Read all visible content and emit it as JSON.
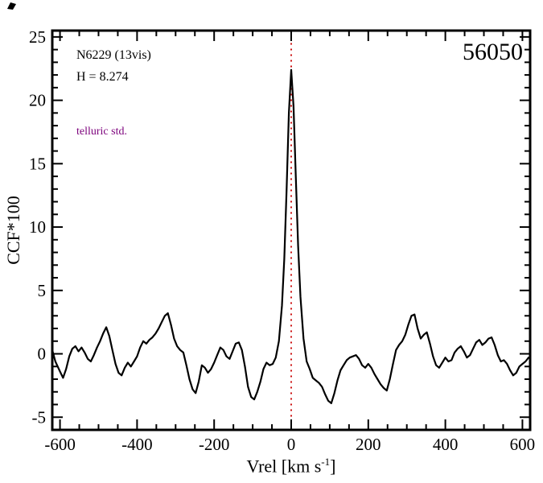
{
  "chart_data": {
    "type": "line",
    "title": "",
    "xlabel_pre": "Vrel [km s",
    "xlabel_sup": "-1",
    "xlabel_post": "]",
    "ylabel": "CCF*100",
    "xlim": [
      -620,
      620
    ],
    "ylim": [
      -6,
      25.5
    ],
    "xticks": [
      -600,
      -400,
      -200,
      0,
      200,
      400,
      600
    ],
    "yticks": [
      -5,
      0,
      5,
      10,
      15,
      20,
      25
    ],
    "x_minor_step": 50,
    "y_minor_step": 1,
    "grid": false,
    "legend": false,
    "frame_color": "#000000",
    "marker_line": {
      "x": 0,
      "color": "#cc1111",
      "style": "dotted"
    },
    "series": [
      {
        "name": "CCF",
        "color": "#000000",
        "points": [
          [
            -620,
            0.3
          ],
          [
            -612,
            -0.6
          ],
          [
            -600,
            -1.4
          ],
          [
            -592,
            -1.9
          ],
          [
            -584,
            -1.2
          ],
          [
            -576,
            -0.2
          ],
          [
            -568,
            0.4
          ],
          [
            -560,
            0.6
          ],
          [
            -552,
            0.2
          ],
          [
            -544,
            0.5
          ],
          [
            -536,
            0.1
          ],
          [
            -528,
            -0.4
          ],
          [
            -520,
            -0.6
          ],
          [
            -512,
            -0.1
          ],
          [
            -504,
            0.5
          ],
          [
            -496,
            1.0
          ],
          [
            -488,
            1.6
          ],
          [
            -480,
            2.1
          ],
          [
            -472,
            1.4
          ],
          [
            -464,
            0.3
          ],
          [
            -456,
            -0.8
          ],
          [
            -448,
            -1.5
          ],
          [
            -440,
            -1.7
          ],
          [
            -432,
            -1.1
          ],
          [
            -424,
            -0.7
          ],
          [
            -416,
            -1.0
          ],
          [
            -408,
            -0.6
          ],
          [
            -400,
            -0.2
          ],
          [
            -392,
            0.5
          ],
          [
            -384,
            1.0
          ],
          [
            -376,
            0.8
          ],
          [
            -368,
            1.1
          ],
          [
            -360,
            1.3
          ],
          [
            -352,
            1.6
          ],
          [
            -344,
            2.0
          ],
          [
            -336,
            2.5
          ],
          [
            -328,
            3.0
          ],
          [
            -320,
            3.2
          ],
          [
            -312,
            2.3
          ],
          [
            -304,
            1.2
          ],
          [
            -296,
            0.6
          ],
          [
            -288,
            0.3
          ],
          [
            -280,
            0.1
          ],
          [
            -272,
            -0.9
          ],
          [
            -264,
            -2.0
          ],
          [
            -256,
            -2.8
          ],
          [
            -248,
            -3.1
          ],
          [
            -240,
            -2.2
          ],
          [
            -232,
            -0.9
          ],
          [
            -224,
            -1.1
          ],
          [
            -216,
            -1.5
          ],
          [
            -208,
            -1.2
          ],
          [
            -200,
            -0.7
          ],
          [
            -192,
            -0.1
          ],
          [
            -184,
            0.5
          ],
          [
            -176,
            0.3
          ],
          [
            -168,
            -0.2
          ],
          [
            -160,
            -0.4
          ],
          [
            -152,
            0.2
          ],
          [
            -144,
            0.8
          ],
          [
            -136,
            0.9
          ],
          [
            -128,
            0.3
          ],
          [
            -120,
            -1.0
          ],
          [
            -112,
            -2.6
          ],
          [
            -104,
            -3.4
          ],
          [
            -96,
            -3.6
          ],
          [
            -88,
            -3.0
          ],
          [
            -80,
            -2.2
          ],
          [
            -72,
            -1.2
          ],
          [
            -64,
            -0.7
          ],
          [
            -56,
            -0.9
          ],
          [
            -48,
            -0.8
          ],
          [
            -40,
            -0.3
          ],
          [
            -32,
            1.0
          ],
          [
            -24,
            3.8
          ],
          [
            -18,
            7.5
          ],
          [
            -12,
            13.0
          ],
          [
            -6,
            19.0
          ],
          [
            0,
            22.4
          ],
          [
            6,
            19.5
          ],
          [
            12,
            14.0
          ],
          [
            18,
            8.5
          ],
          [
            24,
            4.5
          ],
          [
            32,
            1.2
          ],
          [
            40,
            -0.6
          ],
          [
            48,
            -1.2
          ],
          [
            56,
            -1.9
          ],
          [
            64,
            -2.1
          ],
          [
            72,
            -2.3
          ],
          [
            80,
            -2.6
          ],
          [
            88,
            -3.2
          ],
          [
            96,
            -3.7
          ],
          [
            104,
            -3.9
          ],
          [
            112,
            -3.1
          ],
          [
            120,
            -2.1
          ],
          [
            128,
            -1.3
          ],
          [
            136,
            -0.9
          ],
          [
            144,
            -0.5
          ],
          [
            152,
            -0.3
          ],
          [
            160,
            -0.2
          ],
          [
            168,
            -0.1
          ],
          [
            176,
            -0.4
          ],
          [
            184,
            -0.9
          ],
          [
            192,
            -1.1
          ],
          [
            200,
            -0.8
          ],
          [
            208,
            -1.1
          ],
          [
            216,
            -1.6
          ],
          [
            224,
            -2.0
          ],
          [
            232,
            -2.4
          ],
          [
            240,
            -2.7
          ],
          [
            248,
            -2.9
          ],
          [
            256,
            -2.0
          ],
          [
            264,
            -0.8
          ],
          [
            272,
            0.3
          ],
          [
            280,
            0.7
          ],
          [
            288,
            1.0
          ],
          [
            296,
            1.5
          ],
          [
            304,
            2.3
          ],
          [
            312,
            3.0
          ],
          [
            320,
            3.1
          ],
          [
            328,
            2.0
          ],
          [
            336,
            1.2
          ],
          [
            344,
            1.5
          ],
          [
            352,
            1.7
          ],
          [
            360,
            0.8
          ],
          [
            368,
            -0.2
          ],
          [
            376,
            -0.9
          ],
          [
            384,
            -1.1
          ],
          [
            392,
            -0.7
          ],
          [
            400,
            -0.3
          ],
          [
            408,
            -0.6
          ],
          [
            416,
            -0.5
          ],
          [
            424,
            0.1
          ],
          [
            432,
            0.4
          ],
          [
            440,
            0.6
          ],
          [
            448,
            0.2
          ],
          [
            456,
            -0.3
          ],
          [
            464,
            -0.1
          ],
          [
            472,
            0.4
          ],
          [
            480,
            0.9
          ],
          [
            488,
            1.1
          ],
          [
            496,
            0.7
          ],
          [
            504,
            0.9
          ],
          [
            512,
            1.2
          ],
          [
            520,
            1.3
          ],
          [
            528,
            0.7
          ],
          [
            536,
            -0.1
          ],
          [
            544,
            -0.6
          ],
          [
            552,
            -0.5
          ],
          [
            560,
            -0.8
          ],
          [
            568,
            -1.3
          ],
          [
            576,
            -1.7
          ],
          [
            584,
            -1.5
          ],
          [
            592,
            -1.0
          ],
          [
            600,
            -0.8
          ],
          [
            608,
            -0.6
          ],
          [
            616,
            -0.3
          ]
        ]
      }
    ]
  },
  "annotations": {
    "target_label": "N6229 (13vis)",
    "h_mag": "H = 8.274",
    "telluric": "telluric std.",
    "telluric_color": "#7c007c",
    "mjd": "56050"
  }
}
